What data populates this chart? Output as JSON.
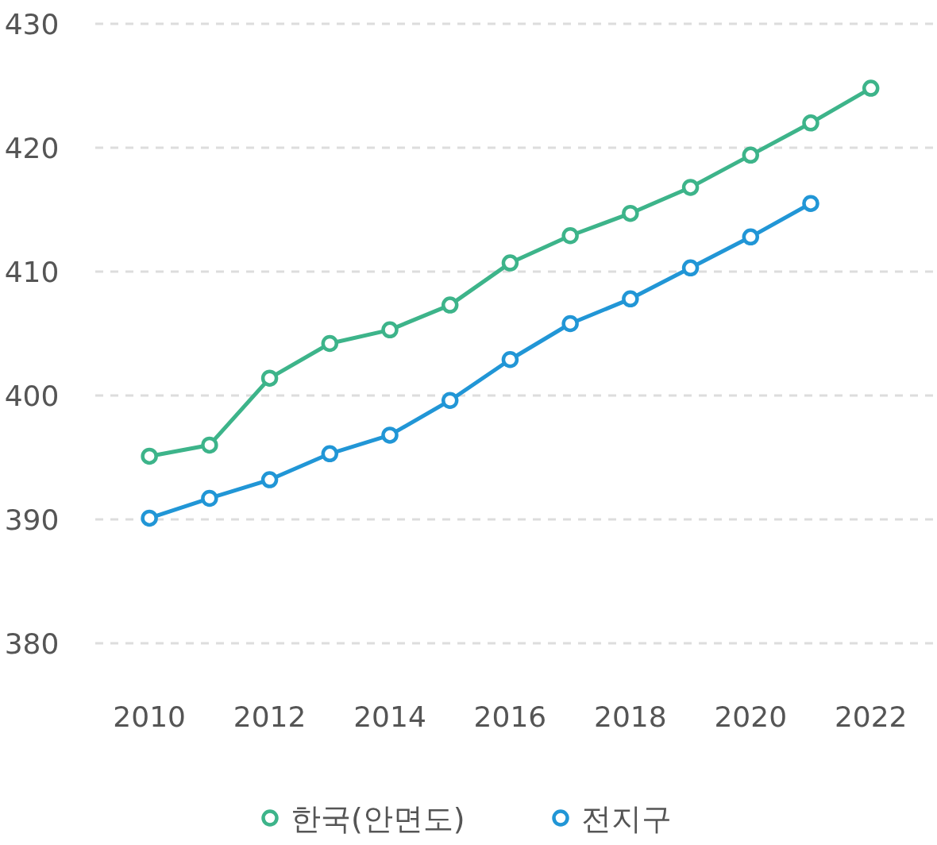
{
  "chart_data": {
    "type": "line",
    "x": [
      2010,
      2011,
      2012,
      2013,
      2014,
      2015,
      2016,
      2017,
      2018,
      2019,
      2020,
      2021,
      2022
    ],
    "series": [
      {
        "name": "한국(안면도)",
        "color": "#3db48a",
        "values": [
          395.1,
          396.0,
          401.4,
          404.2,
          405.3,
          407.3,
          410.7,
          412.9,
          414.7,
          416.8,
          419.4,
          422.0,
          424.8
        ]
      },
      {
        "name": "전지구",
        "color": "#2196d6",
        "values": [
          390.1,
          391.7,
          393.2,
          395.3,
          396.8,
          399.6,
          402.9,
          405.8,
          407.8,
          410.3,
          412.8,
          415.5,
          null
        ]
      }
    ],
    "xlim": [
      2009.1,
      2023.1
    ],
    "xticks": [
      2010,
      2012,
      2014,
      2016,
      2018,
      2020,
      2022
    ],
    "ylim": [
      380,
      430
    ],
    "yticks": [
      380,
      390,
      400,
      410,
      420,
      430
    ],
    "grid": "y",
    "legend": "bottom",
    "marker": "circle",
    "line_style": "solid"
  }
}
